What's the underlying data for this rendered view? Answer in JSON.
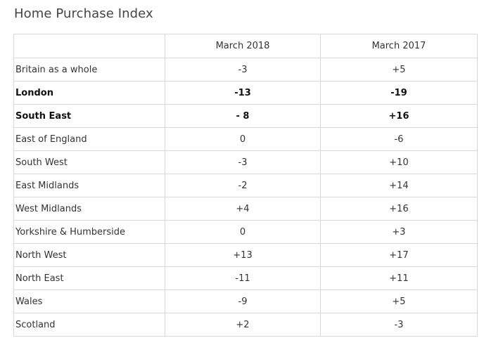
{
  "title": "Home Purchase Index",
  "table": {
    "columns": [
      "",
      "March 2018",
      "March 2017"
    ],
    "rows": [
      {
        "region": "Britain as a whole",
        "m2018": "-3",
        "m2017": "+5",
        "bold": false
      },
      {
        "region": "London",
        "m2018": "-13",
        "m2017": "-19",
        "bold": true
      },
      {
        "region": "South East",
        "m2018": "- 8",
        "m2017": "+16",
        "bold": true
      },
      {
        "region": "East of England",
        "m2018": "0",
        "m2017": "-6",
        "bold": false
      },
      {
        "region": "South West",
        "m2018": "-3",
        "m2017": "+10",
        "bold": false
      },
      {
        "region": "East Midlands",
        "m2018": "-2",
        "m2017": "+14",
        "bold": false
      },
      {
        "region": "West Midlands",
        "m2018": "+4",
        "m2017": "+16",
        "bold": false
      },
      {
        "region": "Yorkshire & Humberside",
        "m2018": "0",
        "m2017": "+3",
        "bold": false
      },
      {
        "region": "North West",
        "m2018": "+13",
        "m2017": "+17",
        "bold": false
      },
      {
        "region": "North East",
        "m2018": "-11",
        "m2017": "+11",
        "bold": false
      },
      {
        "region": "Wales",
        "m2018": "-9",
        "m2017": "+5",
        "bold": false
      },
      {
        "region": "Scotland",
        "m2018": "+2",
        "m2017": "-3",
        "bold": false
      }
    ]
  }
}
